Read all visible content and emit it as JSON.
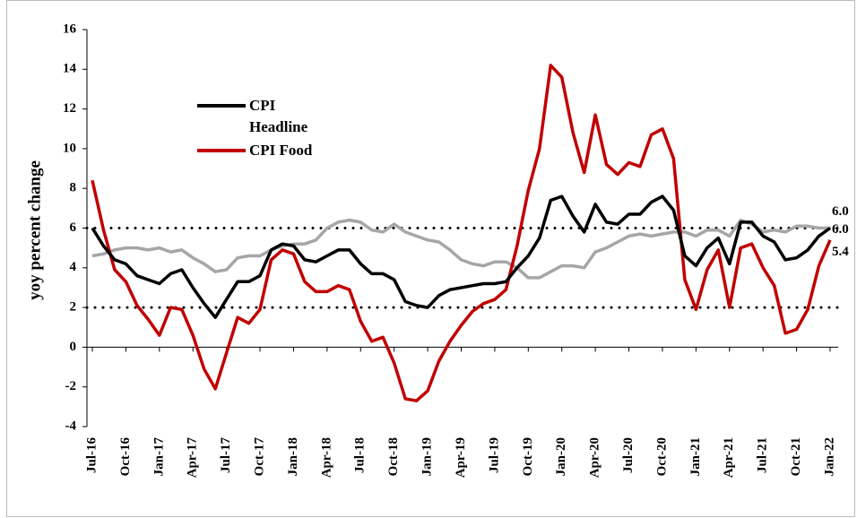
{
  "chart_data": {
    "type": "line",
    "y_label": "yoy percent change",
    "categories": [
      "Jul-16",
      null,
      null,
      "Oct-16",
      null,
      null,
      "Jan-17",
      null,
      null,
      "Apr-17",
      null,
      null,
      "Jul-17",
      null,
      null,
      "Oct-17",
      null,
      null,
      "Jan-18",
      null,
      null,
      "Apr-18",
      null,
      null,
      "Jul-18",
      null,
      null,
      "Oct-18",
      null,
      null,
      "Jan-19",
      null,
      null,
      "Apr-19",
      null,
      null,
      "Jul-19",
      null,
      null,
      "Oct-19",
      null,
      null,
      "Jan-20",
      null,
      null,
      "Apr-20",
      null,
      null,
      "Jul-20",
      null,
      null,
      "Oct-20",
      null,
      null,
      "Jan-21",
      null,
      null,
      "Apr-21",
      null,
      null,
      "Jul-21",
      null,
      null,
      "Oct-21",
      null,
      null,
      "Jan-22"
    ],
    "series": [
      {
        "name": "CPI Headline",
        "color": "#000000",
        "end_label": "6.0",
        "values": [
          6.0,
          5.1,
          4.4,
          4.2,
          3.6,
          3.4,
          3.2,
          3.7,
          3.9,
          3.0,
          2.2,
          1.5,
          2.4,
          3.3,
          3.3,
          3.6,
          4.9,
          5.2,
          5.1,
          4.4,
          4.3,
          4.6,
          4.9,
          4.9,
          4.2,
          3.7,
          3.7,
          3.4,
          2.3,
          2.1,
          2.0,
          2.6,
          2.9,
          3.0,
          3.1,
          3.2,
          3.2,
          3.3,
          4.0,
          4.6,
          5.5,
          7.4,
          7.6,
          6.6,
          5.8,
          7.2,
          6.3,
          6.2,
          6.7,
          6.7,
          7.3,
          7.6,
          6.9,
          4.6,
          4.1,
          5.0,
          5.5,
          4.2,
          6.3,
          6.3,
          5.6,
          5.3,
          4.4,
          4.5,
          4.9,
          5.6,
          6.0
        ]
      },
      {
        "name": "CPI Food",
        "color": "#c00000",
        "end_label": "5.4",
        "values": [
          8.4,
          5.9,
          3.9,
          3.3,
          2.1,
          1.4,
          0.6,
          2.0,
          1.9,
          0.6,
          -1.1,
          -2.1,
          -0.3,
          1.5,
          1.2,
          1.9,
          4.4,
          4.9,
          4.7,
          3.3,
          2.8,
          2.8,
          3.1,
          2.9,
          1.3,
          0.3,
          0.5,
          -0.8,
          -2.6,
          -2.7,
          -2.2,
          -0.7,
          0.3,
          1.1,
          1.8,
          2.2,
          2.4,
          2.9,
          5.1,
          7.9,
          10.0,
          14.2,
          13.6,
          10.8,
          8.8,
          11.7,
          9.2,
          8.7,
          9.3,
          9.1,
          10.7,
          11.0,
          9.5,
          3.4,
          1.9,
          3.9,
          4.9,
          2.0,
          5.0,
          5.2,
          4.0,
          3.1,
          0.7,
          0.9,
          1.9,
          4.1,
          5.4
        ]
      },
      {
        "color": "#a6a6a6",
        "end_label": "6.0",
        "values": [
          4.6,
          4.7,
          4.9,
          5.0,
          5.0,
          4.9,
          5.0,
          4.8,
          4.9,
          4.5,
          4.2,
          3.8,
          3.9,
          4.5,
          4.6,
          4.6,
          4.9,
          5.1,
          5.2,
          5.2,
          5.4,
          6.0,
          6.3,
          6.4,
          6.3,
          5.9,
          5.8,
          6.2,
          5.8,
          5.6,
          5.4,
          5.3,
          4.9,
          4.4,
          4.2,
          4.1,
          4.3,
          4.3,
          4.0,
          3.5,
          3.5,
          3.8,
          4.1,
          4.1,
          4.0,
          4.8,
          5.0,
          5.3,
          5.6,
          5.7,
          5.6,
          5.7,
          5.8,
          5.8,
          5.6,
          5.9,
          5.9,
          5.6,
          6.4,
          6.2,
          5.8,
          5.9,
          5.8,
          6.1,
          6.1,
          6.0,
          6.0
        ]
      }
    ],
    "reference_lines": [
      6,
      2
    ],
    "ylim": [
      -4,
      16
    ],
    "yticks": [
      -4,
      -2,
      0,
      2,
      4,
      6,
      8,
      10,
      12,
      14,
      16
    ]
  }
}
